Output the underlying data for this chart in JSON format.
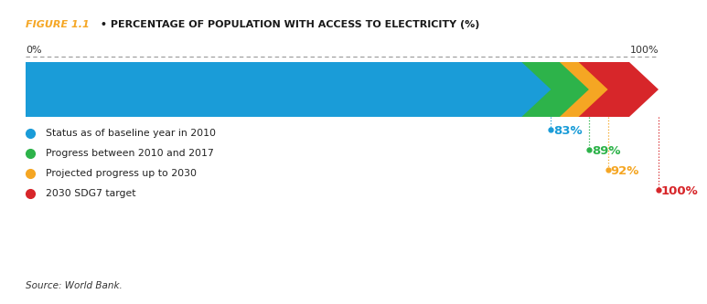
{
  "title_figure": "FIGURE 1.1",
  "title_bullet": " • ",
  "title_text": "PERCENTAGE OF POPULATION WITH ACCESS TO ELECTRICITY (%)",
  "label_0": "0%",
  "label_100": "100%",
  "arrow_colors": [
    "#1a9cd8",
    "#2db34a",
    "#f5a623",
    "#d7262a"
  ],
  "arrow_values": [
    83,
    89,
    92,
    100
  ],
  "arrow_labels": [
    "83%",
    "89%",
    "92%",
    "100%"
  ],
  "arrow_label_colors": [
    "#1a9cd8",
    "#2db34a",
    "#f5a623",
    "#d7262a"
  ],
  "legend_dot_colors": [
    "#1a9cd8",
    "#2db34a",
    "#f5a623",
    "#d7262a"
  ],
  "legend_texts": [
    "Status as of baseline year in 2010",
    "Progress between 2010 and 2017",
    "Projected progress up to 2030",
    "2030 SDG7 target"
  ],
  "source_text": "Source: World Bank.",
  "title_figure_color": "#f5a623",
  "title_bullet_color": "#333333",
  "background_color": "#ffffff",
  "dashed_line_color": "#999999"
}
